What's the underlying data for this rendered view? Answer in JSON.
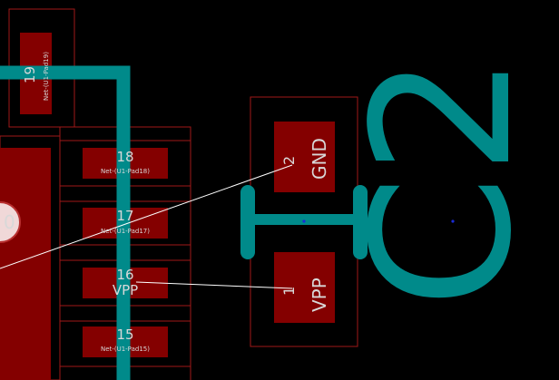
{
  "colors": {
    "background": "#000000",
    "pad": "#840000",
    "pad_outline": "#b83030",
    "silkscreen": "#008a8a",
    "ratsnest": "#ffffff",
    "label": "#d8d8d8",
    "anchor": "#1a2bd8"
  },
  "pads": {
    "p19": {
      "number": "19",
      "net": "Net-(U1-Pad19)"
    },
    "p18": {
      "number": "18",
      "net": "Net-(U1-Pad18)"
    },
    "p17": {
      "number": "17",
      "net": "Net-(U1-Pad17)"
    },
    "p16": {
      "number": "16",
      "net": "VPP"
    },
    "p15": {
      "number": "15",
      "net": "Net-(U1-Pad15)"
    },
    "big_left": {
      "number": "0"
    },
    "c2_pad2": {
      "number": "2",
      "net": "GND"
    },
    "c2_pad1": {
      "number": "1",
      "net": "VPP"
    }
  },
  "footprint": {
    "reference": "C2"
  }
}
